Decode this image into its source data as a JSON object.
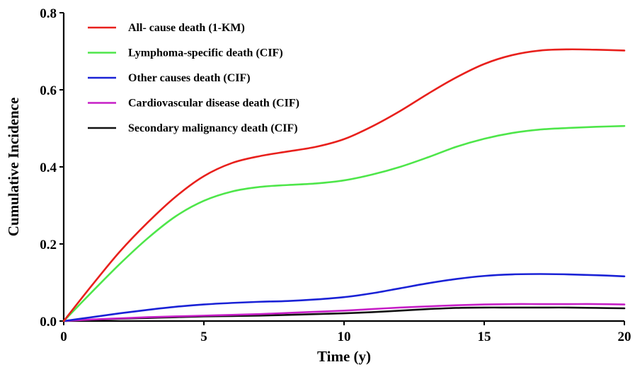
{
  "chart_data": {
    "type": "line",
    "title": "",
    "xlabel": "Time (y)",
    "ylabel": "Cumulative Incidence",
    "xlim": [
      0,
      20
    ],
    "ylim": [
      0,
      0.8
    ],
    "xticks": [
      0,
      5,
      10,
      15,
      20
    ],
    "xtick_labels": [
      "0",
      "5",
      "10",
      "15",
      "20"
    ],
    "yticks": [
      0,
      0.2,
      0.4,
      0.6,
      0.8
    ],
    "ytick_labels": [
      "0.0",
      "0.2",
      "0.4",
      "0.6",
      "0.8"
    ],
    "grid": false,
    "legend_position": "top-left",
    "x": [
      0,
      1,
      2,
      3,
      4,
      5,
      6,
      7,
      8,
      9,
      10,
      11,
      12,
      13,
      14,
      15,
      16,
      17,
      18,
      19,
      20
    ],
    "series": [
      {
        "name": "All- cause death (1-KM)",
        "color": "#e8201c",
        "values": [
          0.0,
          0.092,
          0.18,
          0.256,
          0.323,
          0.376,
          0.41,
          0.428,
          0.44,
          0.452,
          0.472,
          0.505,
          0.545,
          0.59,
          0.632,
          0.667,
          0.69,
          0.702,
          0.705,
          0.704,
          0.702
        ]
      },
      {
        "name": "Lymphoma-specific death (CIF)",
        "color": "#4ee64a",
        "values": [
          0.0,
          0.075,
          0.148,
          0.215,
          0.272,
          0.312,
          0.336,
          0.348,
          0.353,
          0.357,
          0.365,
          0.38,
          0.4,
          0.425,
          0.452,
          0.473,
          0.488,
          0.497,
          0.501,
          0.504,
          0.506
        ]
      },
      {
        "name": "Other causes death (CIF)",
        "color": "#1a22d6",
        "values": [
          0.0,
          0.01,
          0.02,
          0.029,
          0.037,
          0.043,
          0.047,
          0.05,
          0.052,
          0.056,
          0.062,
          0.072,
          0.085,
          0.098,
          0.109,
          0.117,
          0.121,
          0.122,
          0.121,
          0.119,
          0.116
        ]
      },
      {
        "name": "Cardiovascular disease death (CIF)",
        "color": "#c61ec6",
        "values": [
          0.0,
          0.004,
          0.007,
          0.01,
          0.012,
          0.014,
          0.016,
          0.018,
          0.021,
          0.024,
          0.027,
          0.031,
          0.035,
          0.038,
          0.041,
          0.043,
          0.044,
          0.044,
          0.044,
          0.044,
          0.043
        ]
      },
      {
        "name": "Secondary malignancy death (CIF)",
        "color": "#111111",
        "values": [
          0.0,
          0.003,
          0.006,
          0.008,
          0.01,
          0.012,
          0.013,
          0.014,
          0.016,
          0.018,
          0.02,
          0.023,
          0.027,
          0.031,
          0.034,
          0.035,
          0.035,
          0.035,
          0.035,
          0.034,
          0.033
        ]
      }
    ]
  }
}
